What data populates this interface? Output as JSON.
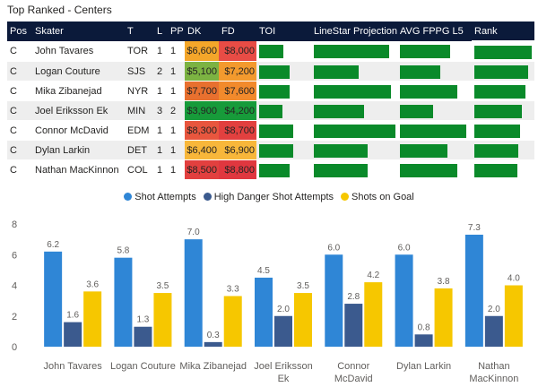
{
  "visual_title": "Top Ranked - Centers",
  "table": {
    "columns": [
      "Pos",
      "Skater",
      "T",
      "L",
      "PP",
      "DK",
      "FD",
      "TOI",
      "LineStar Projection",
      "AVG FPPG L5",
      "Rank"
    ],
    "rows": [
      {
        "pos": "C",
        "skater": "John Tavares",
        "team": "TOR",
        "line": "1",
        "pp": "1",
        "dk": "$6,600",
        "fd": "$8,000",
        "dk_color": "#f4a62a",
        "fd_color": "#e84c45",
        "toi": 0.47,
        "projection": 0.92,
        "fppg": 0.72,
        "rank": 0.98
      },
      {
        "pos": "C",
        "skater": "Logan Couture",
        "team": "SJS",
        "line": "2",
        "pp": "1",
        "dk": "$5,100",
        "fd": "$7,200",
        "dk_color": "#7cb342",
        "fd_color": "#f39a2e",
        "toi": 0.58,
        "projection": 0.55,
        "fppg": 0.58,
        "rank": 0.92
      },
      {
        "pos": "C",
        "skater": "Mika Zibanejad",
        "team": "NYR",
        "line": "1",
        "pp": "1",
        "dk": "$7,700",
        "fd": "$7,600",
        "dk_color": "#e8702f",
        "fd_color": "#f28a2c",
        "toi": 0.58,
        "projection": 0.94,
        "fppg": 0.82,
        "rank": 0.88
      },
      {
        "pos": "C",
        "skater": "Joel Eriksson Ek",
        "team": "MIN",
        "line": "3",
        "pp": "2",
        "dk": "$3,900",
        "fd": "$4,200",
        "dk_color": "#179b3a",
        "fd_color": "#179b3a",
        "toi": 0.45,
        "projection": 0.61,
        "fppg": 0.47,
        "rank": 0.82
      },
      {
        "pos": "C",
        "skater": "Connor McDavid",
        "team": "EDM",
        "line": "1",
        "pp": "1",
        "dk": "$8,300",
        "fd": "$8,700",
        "dk_color": "#e8563e",
        "fd_color": "#e2403f",
        "toi": 0.66,
        "projection": 1.0,
        "fppg": 0.95,
        "rank": 0.78
      },
      {
        "pos": "C",
        "skater": "Dylan Larkin",
        "team": "DET",
        "line": "1",
        "pp": "1",
        "dk": "$6,400",
        "fd": "$6,900",
        "dk_color": "#f8b73a",
        "fd_color": "#f8b73a",
        "toi": 0.65,
        "projection": 0.66,
        "fppg": 0.68,
        "rank": 0.76
      },
      {
        "pos": "C",
        "skater": "Nathan MacKinnon",
        "team": "COL",
        "line": "1",
        "pp": "1",
        "dk": "$8,500",
        "fd": "$8,800",
        "dk_color": "#e2403f",
        "fd_color": "#e0373f",
        "toi": 0.58,
        "projection": 0.66,
        "fppg": 0.82,
        "rank": 0.74
      }
    ]
  },
  "chart_data": {
    "type": "bar",
    "categories": [
      [
        "John Tavares"
      ],
      [
        "Logan Couture"
      ],
      [
        "Mika Zibanejad"
      ],
      [
        "Joel Eriksson",
        "Ek"
      ],
      [
        "Connor",
        "McDavid"
      ],
      [
        "Dylan Larkin"
      ],
      [
        "Nathan",
        "MacKinnon"
      ]
    ],
    "series": [
      {
        "name": "Shot Attempts",
        "color": "#2f86d6",
        "values": [
          6.2,
          5.8,
          7.0,
          4.5,
          6.0,
          6.0,
          7.3
        ]
      },
      {
        "name": "High Danger Shot Attempts",
        "color": "#3b5a8e",
        "values": [
          1.6,
          1.3,
          0.3,
          2.0,
          2.8,
          0.8,
          2.0
        ]
      },
      {
        "name": "Shots on Goal",
        "color": "#f6c700",
        "values": [
          3.6,
          3.5,
          3.3,
          3.5,
          4.2,
          3.8,
          4.0
        ]
      }
    ],
    "ylim": [
      0,
      8
    ],
    "yticks": [
      0,
      2,
      4,
      6,
      8
    ],
    "xlabel": "",
    "ylabel": ""
  }
}
